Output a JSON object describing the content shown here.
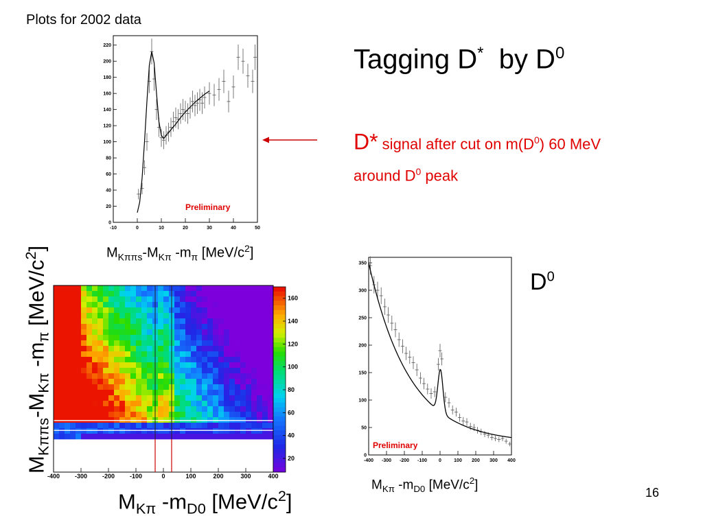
{
  "caption": "Plots for 2002 data",
  "title": {
    "main": "Tagging D",
    "sup1": "*",
    "mid": "  by D",
    "sup2": "0"
  },
  "description": {
    "lead": "D*",
    "line1_a": " signal after cut on m(D",
    "line1_sup": "0",
    "line1_b": ") 60 MeV",
    "line2_a": "around D",
    "line2_sup": "0",
    "line2_b": " peak"
  },
  "d0_label": {
    "base": "D",
    "sup": "0"
  },
  "page_number": "16",
  "labels": {
    "top_x": {
      "a": "M",
      "a_sub": "Kππs",
      "b": "-M",
      "b_sub": "Kπ",
      "c": " -m",
      "c_sub": "π",
      "d": " [MeV/c",
      "d_sup": "2",
      "e": "]"
    },
    "heat_x": {
      "a": "M",
      "a_sub": "Kπ",
      "b": " -m",
      "b_sub": "D0",
      "c": " [MeV/c",
      "c_sup": "2",
      "d": "]"
    },
    "heat_y": {
      "a": "M",
      "a_sub": "Kππs",
      "b": "-M",
      "b_sub": "Kπ",
      "c": " -m",
      "c_sub": "π",
      "d": " [MeV/c",
      "d_sup": "2",
      "e": "]"
    },
    "d0_x": {
      "a": "M",
      "a_sub": "Kπ",
      "b": " -m",
      "b_sub": "D0",
      "c": " [MeV/c",
      "c_sup": "2",
      "d": "]"
    }
  },
  "colors": {
    "accent_red": "#e00000",
    "arrow": "#cc0000"
  },
  "chart_data": [
    {
      "type": "scatter",
      "id": "dstar-signal",
      "xlim": [
        -10,
        50
      ],
      "ylim": [
        0,
        230
      ],
      "xticks": [
        -10,
        0,
        10,
        20,
        30,
        40,
        50
      ],
      "yticks": [
        0,
        20,
        40,
        60,
        80,
        100,
        120,
        140,
        160,
        180,
        200,
        220
      ],
      "annotation": "Preliminary",
      "points": [
        [
          0.5,
          35
        ],
        [
          2,
          42
        ],
        [
          3,
          68
        ],
        [
          4,
          100
        ],
        [
          5,
          175
        ],
        [
          6,
          212
        ],
        [
          7,
          178
        ],
        [
          8,
          140
        ],
        [
          9,
          118
        ],
        [
          10,
          105
        ],
        [
          11,
          102
        ],
        [
          12,
          108
        ],
        [
          13,
          112
        ],
        [
          14,
          118
        ],
        [
          15,
          125
        ],
        [
          16,
          130
        ],
        [
          17,
          128
        ],
        [
          18,
          135
        ],
        [
          19,
          140
        ],
        [
          20,
          138
        ],
        [
          21,
          135
        ],
        [
          22,
          142
        ],
        [
          23,
          150
        ],
        [
          24,
          145
        ],
        [
          25,
          148
        ],
        [
          26,
          152
        ],
        [
          27,
          148
        ],
        [
          28,
          155
        ],
        [
          30,
          160
        ],
        [
          32,
          158
        ],
        [
          34,
          165
        ],
        [
          36,
          175
        ],
        [
          38,
          150
        ],
        [
          40,
          168
        ],
        [
          42,
          205
        ],
        [
          44,
          200
        ],
        [
          46,
          182
        ],
        [
          48,
          175
        ],
        [
          49,
          205
        ]
      ],
      "fit": [
        [
          0,
          12
        ],
        [
          1,
          25
        ],
        [
          2,
          55
        ],
        [
          3,
          100
        ],
        [
          4,
          150
        ],
        [
          5,
          195
        ],
        [
          6,
          212
        ],
        [
          7,
          198
        ],
        [
          8,
          160
        ],
        [
          9,
          125
        ],
        [
          10,
          108
        ],
        [
          11,
          104
        ],
        [
          12,
          108
        ],
        [
          14,
          115
        ],
        [
          16,
          122
        ],
        [
          18,
          130
        ],
        [
          20,
          137
        ],
        [
          22,
          143
        ],
        [
          24,
          149
        ],
        [
          26,
          154
        ],
        [
          28,
          159
        ],
        [
          30,
          163
        ]
      ]
    },
    {
      "type": "scatter",
      "id": "d0-mass",
      "xlim": [
        -400,
        400
      ],
      "ylim": [
        0,
        360
      ],
      "xticks": [
        -400,
        -300,
        -200,
        -100,
        0,
        100,
        200,
        300,
        400
      ],
      "yticks": [
        0,
        50,
        100,
        150,
        200,
        250,
        300,
        350
      ],
      "annotation": "Preliminary",
      "points": [
        [
          -390,
          345
        ],
        [
          -370,
          310
        ],
        [
          -350,
          300
        ],
        [
          -330,
          290
        ],
        [
          -310,
          270
        ],
        [
          -290,
          255
        ],
        [
          -270,
          240
        ],
        [
          -250,
          228
        ],
        [
          -230,
          210
        ],
        [
          -210,
          198
        ],
        [
          -190,
          185
        ],
        [
          -170,
          178
        ],
        [
          -150,
          168
        ],
        [
          -130,
          155
        ],
        [
          -110,
          140
        ],
        [
          -90,
          130
        ],
        [
          -70,
          120
        ],
        [
          -50,
          112
        ],
        [
          -30,
          115
        ],
        [
          -10,
          165
        ],
        [
          0,
          190
        ],
        [
          10,
          175
        ],
        [
          30,
          105
        ],
        [
          50,
          95
        ],
        [
          70,
          82
        ],
        [
          90,
          78
        ],
        [
          110,
          68
        ],
        [
          130,
          62
        ],
        [
          150,
          60
        ],
        [
          170,
          52
        ],
        [
          190,
          50
        ],
        [
          210,
          45
        ],
        [
          230,
          42
        ],
        [
          250,
          38
        ],
        [
          270,
          36
        ],
        [
          290,
          32
        ],
        [
          310,
          30
        ],
        [
          330,
          28
        ],
        [
          350,
          30
        ],
        [
          370,
          25
        ],
        [
          390,
          20
        ]
      ],
      "fit": {
        "type": "background_plus_gaussian",
        "b_a": 84,
        "b_b": 0.0036,
        "peak_mean": 2,
        "peak_sigma": 14,
        "peak_amp": 78
      }
    },
    {
      "type": "heatmap",
      "id": "two-d-distribution",
      "xlim": [
        -400,
        400
      ],
      "ylim": [
        0,
        30
      ],
      "colorbar": [
        20,
        40,
        60,
        80,
        100,
        120,
        140,
        160
      ],
      "xticks": [
        -400,
        -300,
        -200,
        -100,
        0,
        100,
        200,
        300,
        400
      ],
      "grid": [
        40,
        34
      ],
      "cut_lines": [
        -30,
        30
      ]
    }
  ]
}
